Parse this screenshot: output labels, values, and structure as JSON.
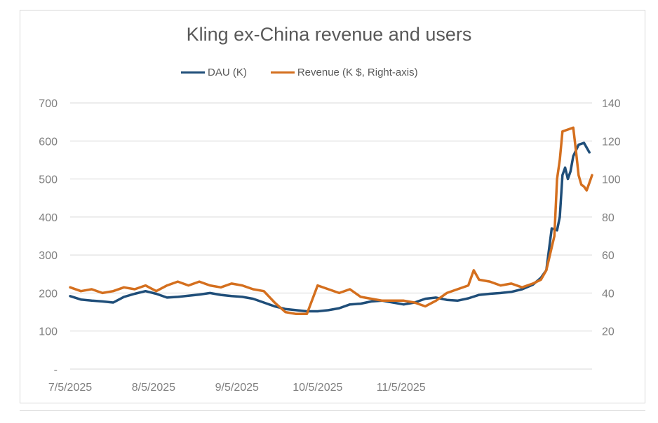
{
  "chart_data": {
    "type": "line",
    "title": "Kling ex-China revenue and users",
    "x_tick_labels": [
      "7/5/2025",
      "8/5/2025",
      "9/5/2025",
      "10/5/2025",
      "11/5/2025"
    ],
    "x_tick_dates": [
      "2025-07-05",
      "2025-08-05",
      "2025-09-05",
      "2025-10-05",
      "2025-11-05"
    ],
    "xlim": [
      "2025-07-05",
      "2026-01-15"
    ],
    "y_left": {
      "ylim": [
        0,
        700
      ],
      "tick_labels": [
        "-",
        "100",
        "200",
        "300",
        "400",
        "500",
        "600",
        "700"
      ]
    },
    "y_right": {
      "ylim": [
        0,
        140
      ],
      "tick_labels": [
        "20",
        "40",
        "60",
        "80",
        "100",
        "120",
        "140"
      ]
    },
    "grid": true,
    "legend_position": "top",
    "series": [
      {
        "name": "DAU (K)",
        "axis": "left",
        "color": "#1f4e79",
        "points": [
          [
            "2025-07-05",
            192
          ],
          [
            "2025-07-09",
            183
          ],
          [
            "2025-07-13",
            180
          ],
          [
            "2025-07-17",
            178
          ],
          [
            "2025-07-21",
            175
          ],
          [
            "2025-07-25",
            190
          ],
          [
            "2025-07-29",
            198
          ],
          [
            "2025-08-02",
            205
          ],
          [
            "2025-08-06",
            198
          ],
          [
            "2025-08-10",
            188
          ],
          [
            "2025-08-14",
            190
          ],
          [
            "2025-08-18",
            193
          ],
          [
            "2025-08-22",
            196
          ],
          [
            "2025-08-26",
            200
          ],
          [
            "2025-08-30",
            195
          ],
          [
            "2025-09-03",
            192
          ],
          [
            "2025-09-07",
            190
          ],
          [
            "2025-09-11",
            185
          ],
          [
            "2025-09-15",
            175
          ],
          [
            "2025-09-19",
            165
          ],
          [
            "2025-09-23",
            158
          ],
          [
            "2025-09-27",
            155
          ],
          [
            "2025-10-01",
            152
          ],
          [
            "2025-10-05",
            152
          ],
          [
            "2025-10-09",
            155
          ],
          [
            "2025-10-13",
            160
          ],
          [
            "2025-10-17",
            170
          ],
          [
            "2025-10-21",
            172
          ],
          [
            "2025-10-25",
            178
          ],
          [
            "2025-10-29",
            180
          ],
          [
            "2025-11-02",
            175
          ],
          [
            "2025-11-06",
            170
          ],
          [
            "2025-11-10",
            175
          ],
          [
            "2025-11-14",
            185
          ],
          [
            "2025-11-18",
            188
          ],
          [
            "2025-11-22",
            182
          ],
          [
            "2025-11-26",
            180
          ],
          [
            "2025-11-30",
            186
          ],
          [
            "2025-12-04",
            195
          ],
          [
            "2025-12-08",
            198
          ],
          [
            "2025-12-12",
            200
          ],
          [
            "2025-12-16",
            203
          ],
          [
            "2025-12-20",
            210
          ],
          [
            "2025-12-24",
            222
          ],
          [
            "2025-12-27",
            240
          ],
          [
            "2025-12-29",
            260
          ],
          [
            "2025-12-31",
            370
          ],
          [
            "2026-01-02",
            365
          ],
          [
            "2026-01-03",
            400
          ],
          [
            "2026-01-04",
            510
          ],
          [
            "2026-01-05",
            530
          ],
          [
            "2026-01-06",
            500
          ],
          [
            "2026-01-07",
            520
          ],
          [
            "2026-01-08",
            560
          ],
          [
            "2026-01-10",
            590
          ],
          [
            "2026-01-12",
            595
          ],
          [
            "2026-01-14",
            570
          ]
        ]
      },
      {
        "name": "Revenue (K $, Right-axis)",
        "axis": "right",
        "color": "#d46f1e",
        "points": [
          [
            "2025-07-05",
            43
          ],
          [
            "2025-07-09",
            41
          ],
          [
            "2025-07-13",
            42
          ],
          [
            "2025-07-17",
            40
          ],
          [
            "2025-07-21",
            41
          ],
          [
            "2025-07-25",
            43
          ],
          [
            "2025-07-29",
            42
          ],
          [
            "2025-08-02",
            44
          ],
          [
            "2025-08-06",
            41
          ],
          [
            "2025-08-10",
            44
          ],
          [
            "2025-08-14",
            46
          ],
          [
            "2025-08-18",
            44
          ],
          [
            "2025-08-22",
            46
          ],
          [
            "2025-08-26",
            44
          ],
          [
            "2025-08-30",
            43
          ],
          [
            "2025-09-03",
            45
          ],
          [
            "2025-09-07",
            44
          ],
          [
            "2025-09-11",
            42
          ],
          [
            "2025-09-15",
            41
          ],
          [
            "2025-09-19",
            35
          ],
          [
            "2025-09-23",
            30
          ],
          [
            "2025-09-27",
            29
          ],
          [
            "2025-10-01",
            29
          ],
          [
            "2025-10-05",
            44
          ],
          [
            "2025-10-09",
            42
          ],
          [
            "2025-10-13",
            40
          ],
          [
            "2025-10-17",
            42
          ],
          [
            "2025-10-21",
            38
          ],
          [
            "2025-10-25",
            37
          ],
          [
            "2025-10-29",
            36
          ],
          [
            "2025-11-02",
            36
          ],
          [
            "2025-11-06",
            36
          ],
          [
            "2025-11-10",
            35
          ],
          [
            "2025-11-14",
            33
          ],
          [
            "2025-11-18",
            36
          ],
          [
            "2025-11-22",
            40
          ],
          [
            "2025-11-26",
            42
          ],
          [
            "2025-11-30",
            44
          ],
          [
            "2025-12-02",
            52
          ],
          [
            "2025-12-04",
            47
          ],
          [
            "2025-12-08",
            46
          ],
          [
            "2025-12-12",
            44
          ],
          [
            "2025-12-16",
            45
          ],
          [
            "2025-12-20",
            43
          ],
          [
            "2025-12-24",
            45
          ],
          [
            "2025-12-27",
            47
          ],
          [
            "2025-12-29",
            52
          ],
          [
            "2026-01-01",
            70
          ],
          [
            "2026-01-02",
            100
          ],
          [
            "2026-01-03",
            110
          ],
          [
            "2026-01-04",
            125
          ],
          [
            "2026-01-06",
            126
          ],
          [
            "2026-01-08",
            127
          ],
          [
            "2026-01-09",
            115
          ],
          [
            "2026-01-10",
            102
          ],
          [
            "2026-01-11",
            97
          ],
          [
            "2026-01-12",
            96
          ],
          [
            "2026-01-13",
            94
          ],
          [
            "2026-01-14",
            98
          ],
          [
            "2026-01-15",
            102
          ]
        ]
      }
    ]
  }
}
